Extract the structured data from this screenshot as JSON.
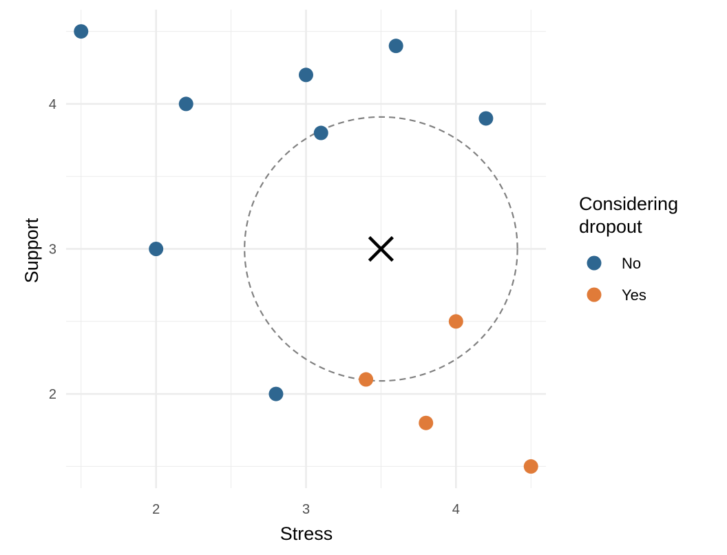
{
  "chart_data": {
    "type": "scatter",
    "title": "",
    "xlabel": "Stress",
    "ylabel": "Support",
    "xlim": [
      1.4,
      4.6
    ],
    "ylim": [
      1.35,
      4.65
    ],
    "x_ticks": [
      2,
      3,
      4
    ],
    "y_ticks": [
      2,
      3,
      4
    ],
    "x_tick_labels": [
      "2",
      "3",
      "4"
    ],
    "y_tick_labels": [
      "2",
      "3",
      "4"
    ],
    "grid": true,
    "legend": {
      "title_lines": [
        "Considering",
        "dropout"
      ],
      "placement": "right"
    },
    "series": [
      {
        "name": "No",
        "color": "#2e6690",
        "points": [
          {
            "x": 1.5,
            "y": 4.5
          },
          {
            "x": 2.2,
            "y": 4.0
          },
          {
            "x": 2.0,
            "y": 3.0
          },
          {
            "x": 2.8,
            "y": 2.0
          },
          {
            "x": 3.0,
            "y": 4.2
          },
          {
            "x": 3.1,
            "y": 3.8
          },
          {
            "x": 3.6,
            "y": 4.4
          },
          {
            "x": 4.2,
            "y": 3.9
          }
        ]
      },
      {
        "name": "Yes",
        "color": "#e07b39",
        "points": [
          {
            "x": 3.4,
            "y": 2.1
          },
          {
            "x": 3.8,
            "y": 1.8
          },
          {
            "x": 4.0,
            "y": 2.5
          },
          {
            "x": 4.5,
            "y": 1.5
          }
        ]
      }
    ],
    "annotations": {
      "new_point": {
        "x": 3.5,
        "y": 3.0,
        "marker": "x",
        "color": "#000000"
      },
      "neighborhood_circle": {
        "cx": 3.5,
        "cy": 3.0,
        "radius": 0.91,
        "style": "dashed",
        "color": "#808080"
      }
    }
  }
}
